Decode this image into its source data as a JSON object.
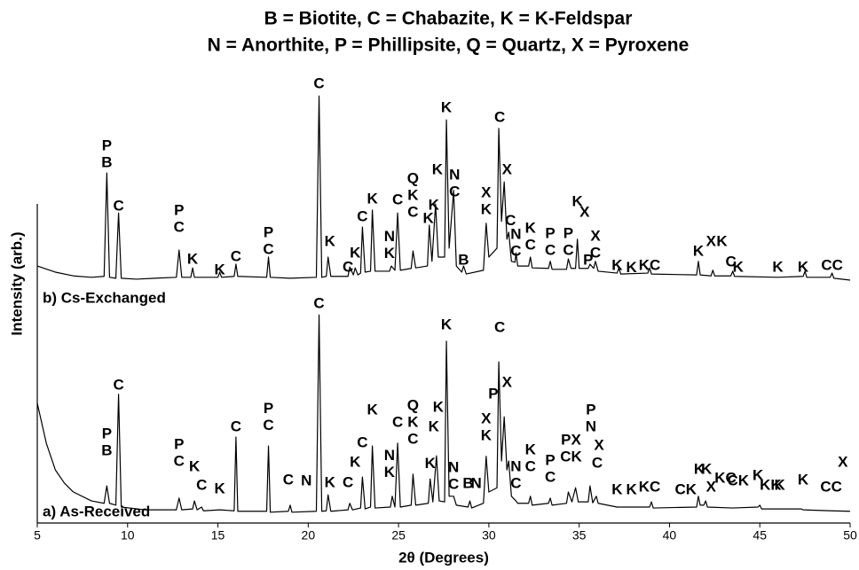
{
  "chart_data": {
    "type": "line",
    "title": "B = Biotite, C = Chabazite, K = K-Feldspar",
    "subtitle": "N = Anorthite, P = Phillipsite, Q = Quartz,  X = Pyroxene",
    "x_label": "2θ (Degrees)",
    "y_label": "Intensity (arb.)",
    "xlim": [
      5,
      50
    ],
    "xticks": [
      5,
      10,
      15,
      20,
      25,
      30,
      35,
      40,
      45,
      50
    ],
    "ylim": [
      0,
      100
    ],
    "series": [
      {
        "name": "a) As-Received",
        "color": "#000000",
        "x": [
          5,
          5.5,
          6,
          6.5,
          7,
          8,
          8.7,
          8.85,
          9.0,
          9.35,
          9.5,
          9.65,
          11,
          12.7,
          12.85,
          13.0,
          13.6,
          13.7,
          13.85,
          14.1,
          14.2,
          15.1,
          15.9,
          16.0,
          16.1,
          17.7,
          17.8,
          17.9,
          18.9,
          19.0,
          19.1,
          20.45,
          20.6,
          20.75,
          21.0,
          21.1,
          21.25,
          22.2,
          22.3,
          22.45,
          22.9,
          23.0,
          23.15,
          23.45,
          23.55,
          23.7,
          24.55,
          24.65,
          24.8,
          24.95,
          25.1,
          25.7,
          25.8,
          25.95,
          26.65,
          26.75,
          26.9,
          27.1,
          27.25,
          27.55,
          27.65,
          27.8,
          28.05,
          28.2,
          28.85,
          28.95,
          29.05,
          29.7,
          29.85,
          30.0,
          30.45,
          30.55,
          30.7,
          30.85,
          31.0,
          31.1,
          31.25,
          31.5,
          31.6,
          32.2,
          32.3,
          32.4,
          33.3,
          33.4,
          33.5,
          34.3,
          34.4,
          34.6,
          34.8,
          34.95,
          35.5,
          35.6,
          35.75,
          35.95,
          36.05,
          37.1,
          38.9,
          39.0,
          39.1,
          41.5,
          41.6,
          41.7,
          41.9,
          42.0,
          42.1,
          43.5,
          44.9,
          45.0,
          45.1,
          47.3,
          47.4,
          49,
          50
        ],
        "values": [
          25.5,
          17,
          11.3,
          8.5,
          6.6,
          4.7,
          4.2,
          7.9,
          4.2,
          3.8,
          27.4,
          3.4,
          2.8,
          2.8,
          5.3,
          2.8,
          3.0,
          4.7,
          2.8,
          3.4,
          2.6,
          2.8,
          2.6,
          18.3,
          2.5,
          2.5,
          16.4,
          2.3,
          2.5,
          3.8,
          2.3,
          2.5,
          44.3,
          2.5,
          2.6,
          6.0,
          2.5,
          2.8,
          4.2,
          2.8,
          3.2,
          9.8,
          3.0,
          3.4,
          16.4,
          3.2,
          3.4,
          5.7,
          3.4,
          17.0,
          3.4,
          3.8,
          10.4,
          3.8,
          4.2,
          9.4,
          4.5,
          14.3,
          4.7,
          4.5,
          38.7,
          5.7,
          5.7,
          3.8,
          3.4,
          4.7,
          3.2,
          4.2,
          14.2,
          6.6,
          7.5,
          34.3,
          13.2,
          22.6,
          11.3,
          13.2,
          5.7,
          4.7,
          4.2,
          4.2,
          5.7,
          3.8,
          4.2,
          5.3,
          3.8,
          4.2,
          6.6,
          4.5,
          7.5,
          4.5,
          4.5,
          7.9,
          4.3,
          5.7,
          4.2,
          3.4,
          3.4,
          4.5,
          3.2,
          3.4,
          5.7,
          3.8,
          3.8,
          4.7,
          3.4,
          3.2,
          3.4,
          3.8,
          3.0,
          3.0,
          2.8,
          2.6,
          2.5
        ]
      },
      {
        "name": "b) Cs-Exchanged",
        "color": "#000000",
        "x": [
          5,
          6,
          7,
          8,
          8.7,
          8.85,
          9.0,
          9.35,
          9.5,
          9.65,
          10.5,
          11.5,
          12.7,
          12.85,
          13.0,
          13.5,
          13.6,
          13.7,
          15.0,
          15.1,
          15.2,
          15.9,
          16.0,
          16.1,
          17.7,
          17.8,
          17.9,
          19,
          20.45,
          20.6,
          20.75,
          21.0,
          21.1,
          21.25,
          22.2,
          22.3,
          22.5,
          22.6,
          22.75,
          22.9,
          23.0,
          23.15,
          23.45,
          23.55,
          23.7,
          24.5,
          24.6,
          24.8,
          24.95,
          25.1,
          25.7,
          25.8,
          25.95,
          26.6,
          26.7,
          26.85,
          27.05,
          27.2,
          27.55,
          27.65,
          27.8,
          28.05,
          28.2,
          28.5,
          28.6,
          28.75,
          29.7,
          29.85,
          30.0,
          30.45,
          30.55,
          30.7,
          30.85,
          31.0,
          31.1,
          31.25,
          31.45,
          31.5,
          31.6,
          32.2,
          32.3,
          32.4,
          33.3,
          33.4,
          33.5,
          34.3,
          34.4,
          34.55,
          34.8,
          34.9,
          35.0,
          35.5,
          35.6,
          35.8,
          35.9,
          36.05,
          37.1,
          37.2,
          37.3,
          38.8,
          38.9,
          39.0,
          41.5,
          41.6,
          41.7,
          42.3,
          42.4,
          42.5,
          43.4,
          43.5,
          43.6,
          46,
          47.4,
          47.5,
          47.6,
          48.9,
          49,
          49.1,
          50
        ],
        "values": [
          54.7,
          53.4,
          52.6,
          52.3,
          52.5,
          74.5,
          52.3,
          52.1,
          66.0,
          52.1,
          51.9,
          52.1,
          52.3,
          58.1,
          52.3,
          52.3,
          54.3,
          52.3,
          52.3,
          53.4,
          52.3,
          52.5,
          55.1,
          52.5,
          52.3,
          56.6,
          52.3,
          52.1,
          52.3,
          90.9,
          52.3,
          52.5,
          56.6,
          52.5,
          52.5,
          54.5,
          52.8,
          54.3,
          52.8,
          53.2,
          63.0,
          53.4,
          53.6,
          66.6,
          53.6,
          53.6,
          54.7,
          53.8,
          66.0,
          53.8,
          54.2,
          57.9,
          54.3,
          54.7,
          63.4,
          55.7,
          67.9,
          56.6,
          56.6,
          85.8,
          58.5,
          70.8,
          54.7,
          53.4,
          54.7,
          53.0,
          53.8,
          63.8,
          56.6,
          58.5,
          84.0,
          64.2,
          72.6,
          60.4,
          61.9,
          55.7,
          55.5,
          57.5,
          54.7,
          54.7,
          56.6,
          54.3,
          54.2,
          55.7,
          54.0,
          54.0,
          56.2,
          54.2,
          54.2,
          60.4,
          54.2,
          54.2,
          55.1,
          54.2,
          55.7,
          53.6,
          53.2,
          54.3,
          53.0,
          53.2,
          54.3,
          53.0,
          52.8,
          55.7,
          52.8,
          52.6,
          53.8,
          52.6,
          52.6,
          53.6,
          52.5,
          52.3,
          52.5,
          53.6,
          52.3,
          52.3,
          53.2,
          52.1,
          51.7
        ]
      }
    ],
    "annotations": [
      {
        "lines": [
          "P",
          "B"
        ],
        "x": 8.85,
        "y": 80.2
      },
      {
        "lines": [
          "C"
        ],
        "x": 9.5,
        "y": 67.4
      },
      {
        "lines": [
          "P",
          "C"
        ],
        "x": 12.85,
        "y": 66.4
      },
      {
        "lines": [
          "K"
        ],
        "x": 13.6,
        "y": 56
      },
      {
        "lines": [
          "K"
        ],
        "x": 15.1,
        "y": 53.8
      },
      {
        "lines": [
          "C"
        ],
        "x": 16.0,
        "y": 56.6
      },
      {
        "lines": [
          "P",
          "C"
        ],
        "x": 17.8,
        "y": 61.7
      },
      {
        "lines": [
          "C"
        ],
        "x": 20.6,
        "y": 93.4
      },
      {
        "lines": [
          "K"
        ],
        "x": 21.2,
        "y": 59.8
      },
      {
        "lines": [
          "C"
        ],
        "x": 22.2,
        "y": 54.3
      },
      {
        "lines": [
          "K"
        ],
        "x": 22.6,
        "y": 57.4
      },
      {
        "lines": [
          "C"
        ],
        "x": 23.0,
        "y": 65.1
      },
      {
        "lines": [
          "K"
        ],
        "x": 23.55,
        "y": 68.9
      },
      {
        "lines": [
          "N",
          "K"
        ],
        "x": 24.5,
        "y": 60.8
      },
      {
        "lines": [
          "C"
        ],
        "x": 24.95,
        "y": 68.7
      },
      {
        "lines": [
          "Q",
          "K",
          "C"
        ],
        "x": 25.8,
        "y": 73.2
      },
      {
        "lines": [
          "K"
        ],
        "x": 26.65,
        "y": 64.7
      },
      {
        "lines": [
          "K"
        ],
        "x": 26.95,
        "y": 67.5
      },
      {
        "lines": [
          "K"
        ],
        "x": 27.15,
        "y": 75.1
      },
      {
        "lines": [
          "K"
        ],
        "x": 27.65,
        "y": 88.3
      },
      {
        "lines": [
          "N",
          "C"
        ],
        "x": 28.1,
        "y": 74
      },
      {
        "lines": [
          "B"
        ],
        "x": 28.6,
        "y": 55.8
      },
      {
        "lines": [
          "X",
          "K"
        ],
        "x": 29.85,
        "y": 70.2
      },
      {
        "lines": [
          "C"
        ],
        "x": 30.6,
        "y": 86.2
      },
      {
        "lines": [
          "X"
        ],
        "x": 31.0,
        "y": 75.1
      },
      {
        "lines": [
          "C"
        ],
        "x": 31.2,
        "y": 64.2
      },
      {
        "lines": [
          "N",
          "C"
        ],
        "x": 31.5,
        "y": 61.3
      },
      {
        "lines": [
          "K",
          "C"
        ],
        "x": 32.3,
        "y": 62.6
      },
      {
        "lines": [
          "P",
          "C"
        ],
        "x": 33.4,
        "y": 61.5
      },
      {
        "lines": [
          "P",
          "C"
        ],
        "x": 34.4,
        "y": 61.5
      },
      {
        "lines": [
          "K"
        ],
        "x": 34.9,
        "y": 68.3
      },
      {
        "lines": [
          "X"
        ],
        "x": 35.3,
        "y": 66
      },
      {
        "lines": [
          "P"
        ],
        "x": 35.5,
        "y": 55.8
      },
      {
        "lines": [
          "X",
          "C"
        ],
        "x": 35.9,
        "y": 60.9
      },
      {
        "lines": [
          "K"
        ],
        "x": 37.1,
        "y": 54.7
      },
      {
        "lines": [
          "K"
        ],
        "x": 37.9,
        "y": 54.2
      },
      {
        "lines": [
          "KC"
        ],
        "x": 38.9,
        "y": 54.7
      },
      {
        "lines": [
          "K"
        ],
        "x": 41.6,
        "y": 57.7
      },
      {
        "lines": [
          "X"
        ],
        "x": 42.3,
        "y": 59.8
      },
      {
        "lines": [
          "K"
        ],
        "x": 42.9,
        "y": 59.8
      },
      {
        "lines": [
          "C"
        ],
        "x": 43.4,
        "y": 55.5
      },
      {
        "lines": [
          "K"
        ],
        "x": 43.8,
        "y": 54.3
      },
      {
        "lines": [
          "K"
        ],
        "x": 46.0,
        "y": 54.3
      },
      {
        "lines": [
          "K"
        ],
        "x": 47.4,
        "y": 54.3
      },
      {
        "lines": [
          "CC"
        ],
        "x": 49.0,
        "y": 54.7
      },
      {
        "lines": [
          "P",
          "B"
        ],
        "x": 8.85,
        "y": 18.9
      },
      {
        "lines": [
          "C"
        ],
        "x": 9.5,
        "y": 29.2
      },
      {
        "lines": [
          "P",
          "C"
        ],
        "x": 12.85,
        "y": 16.6
      },
      {
        "lines": [
          "K"
        ],
        "x": 13.7,
        "y": 11.9
      },
      {
        "lines": [
          "C"
        ],
        "x": 14.1,
        "y": 7.9
      },
      {
        "lines": [
          "K"
        ],
        "x": 15.1,
        "y": 7.2
      },
      {
        "lines": [
          "C"
        ],
        "x": 16.0,
        "y": 20.4
      },
      {
        "lines": [
          "P",
          "C"
        ],
        "x": 17.8,
        "y": 24.2
      },
      {
        "lines": [
          "C"
        ],
        "x": 18.9,
        "y": 9.1
      },
      {
        "lines": [
          "N"
        ],
        "x": 19.9,
        "y": 8.9
      },
      {
        "lines": [
          "C"
        ],
        "x": 20.6,
        "y": 46.6
      },
      {
        "lines": [
          "K"
        ],
        "x": 21.2,
        "y": 8.5
      },
      {
        "lines": [
          "C"
        ],
        "x": 22.2,
        "y": 8.5
      },
      {
        "lines": [
          "K"
        ],
        "x": 22.6,
        "y": 12.8
      },
      {
        "lines": [
          "C"
        ],
        "x": 23.0,
        "y": 17
      },
      {
        "lines": [
          "K"
        ],
        "x": 23.55,
        "y": 24
      },
      {
        "lines": [
          "N",
          "K"
        ],
        "x": 24.5,
        "y": 14.2
      },
      {
        "lines": [
          "C"
        ],
        "x": 24.95,
        "y": 21.3
      },
      {
        "lines": [
          "Q",
          "K",
          "C"
        ],
        "x": 25.8,
        "y": 24.9
      },
      {
        "lines": [
          "K"
        ],
        "x": 26.75,
        "y": 12.5
      },
      {
        "lines": [
          "K"
        ],
        "x": 26.95,
        "y": 20.4
      },
      {
        "lines": [
          "K"
        ],
        "x": 27.2,
        "y": 24.5
      },
      {
        "lines": [
          "K"
        ],
        "x": 27.65,
        "y": 42.1
      },
      {
        "lines": [
          "N",
          "C"
        ],
        "x": 28.05,
        "y": 11.7
      },
      {
        "lines": [
          "B"
        ],
        "x": 28.85,
        "y": 8.3
      },
      {
        "lines": [
          "N"
        ],
        "x": 29.3,
        "y": 8.3
      },
      {
        "lines": [
          "X",
          "K"
        ],
        "x": 29.85,
        "y": 22.1
      },
      {
        "lines": [
          "P"
        ],
        "x": 30.25,
        "y": 27.4
      },
      {
        "lines": [
          "C"
        ],
        "x": 30.6,
        "y": 41.5
      },
      {
        "lines": [
          "X"
        ],
        "x": 31.0,
        "y": 29.8
      },
      {
        "lines": [
          "N",
          "C"
        ],
        "x": 31.5,
        "y": 11.9
      },
      {
        "lines": [
          "K",
          "C"
        ],
        "x": 32.3,
        "y": 15.5
      },
      {
        "lines": [
          "P",
          "C"
        ],
        "x": 33.4,
        "y": 13.2
      },
      {
        "lines": [
          "PX",
          "CK"
        ],
        "x": 34.55,
        "y": 17.5
      },
      {
        "lines": [
          "P",
          "N"
        ],
        "x": 35.65,
        "y": 24
      },
      {
        "lines": [
          "X"
        ],
        "x": 36.1,
        "y": 16.4
      },
      {
        "lines": [
          "C"
        ],
        "x": 36.0,
        "y": 12.6
      },
      {
        "lines": [
          "K"
        ],
        "x": 37.1,
        "y": 7
      },
      {
        "lines": [
          "K"
        ],
        "x": 37.9,
        "y": 7
      },
      {
        "lines": [
          "KC"
        ],
        "x": 38.9,
        "y": 7.5
      },
      {
        "lines": [
          "CK"
        ],
        "x": 40.9,
        "y": 7
      },
      {
        "lines": [
          "K"
        ],
        "x": 41.65,
        "y": 11.3
      },
      {
        "lines": [
          "K"
        ],
        "x": 42.05,
        "y": 11.3
      },
      {
        "lines": [
          "X"
        ],
        "x": 42.3,
        "y": 7.5
      },
      {
        "lines": [
          "KC"
        ],
        "x": 43.1,
        "y": 9.4
      },
      {
        "lines": [
          "CK"
        ],
        "x": 43.8,
        "y": 8.9
      },
      {
        "lines": [
          "K"
        ],
        "x": 44.9,
        "y": 10
      },
      {
        "lines": [
          "KK"
        ],
        "x": 45.6,
        "y": 7.9
      },
      {
        "lines": [
          "K"
        ],
        "x": 46.1,
        "y": 7.9
      },
      {
        "lines": [
          "K"
        ],
        "x": 47.4,
        "y": 9.1
      },
      {
        "lines": [
          "CC"
        ],
        "x": 48.95,
        "y": 7.5
      },
      {
        "lines": [
          "X"
        ],
        "x": 49.6,
        "y": 12.8
      }
    ]
  }
}
